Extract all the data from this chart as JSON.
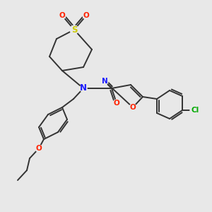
{
  "bg_color": "#e8e8e8",
  "bond_color": "#333333",
  "fig_size": [
    3.0,
    3.0
  ],
  "dpi": 100,
  "lw": 1.4,
  "atoms": {
    "S": {
      "color": "#cccc00"
    },
    "O": {
      "color": "#ff2200"
    },
    "N": {
      "color": "#1a1aff"
    },
    "Cl": {
      "color": "#00aa00"
    }
  }
}
